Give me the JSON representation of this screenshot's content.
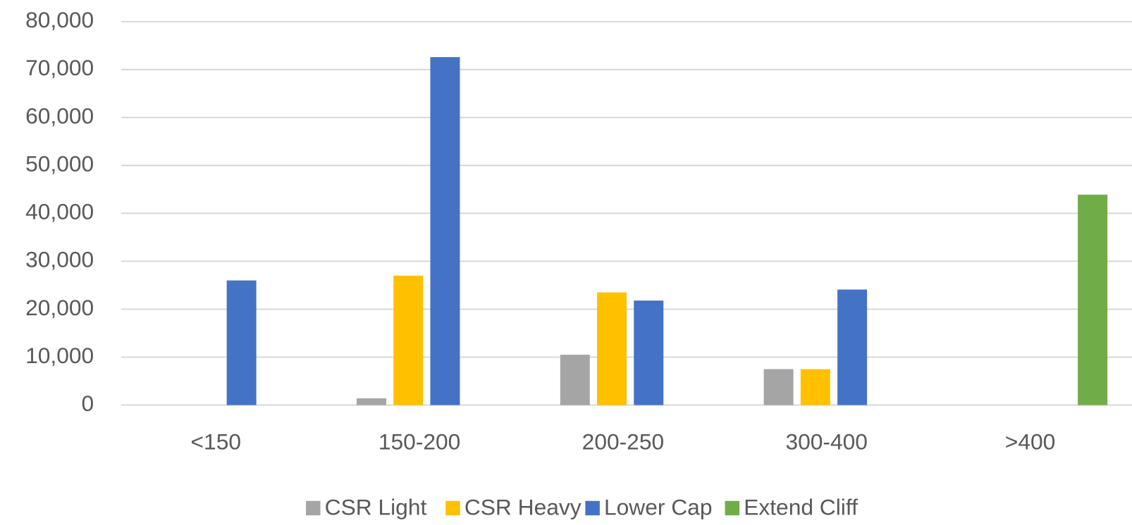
{
  "chart_data": {
    "type": "bar",
    "categories": [
      "<150",
      "150-200",
      "200-250",
      "300-400",
      ">400"
    ],
    "series": [
      {
        "name": "CSR Light",
        "color": "#a5a5a5",
        "values": [
          0,
          1400,
          10500,
          7500,
          0
        ]
      },
      {
        "name": "CSR Heavy",
        "color": "#ffc000",
        "values": [
          0,
          27000,
          23500,
          7500,
          0
        ]
      },
      {
        "name": "Lower Cap",
        "color": "#4472c4",
        "values": [
          26000,
          72600,
          21800,
          24100,
          0
        ]
      },
      {
        "name": "Extend Cliff",
        "color": "#70ad47",
        "values": [
          0,
          0,
          0,
          0,
          43900
        ]
      }
    ],
    "ylim": [
      0,
      80000
    ],
    "yticks": [
      0,
      {
        "value": 10000,
        "label": "10,000"
      },
      {
        "value": 20000,
        "label": "20,000"
      },
      {
        "value": 30000,
        "label": "30,000"
      },
      {
        "value": 40000,
        "label": "40,000"
      },
      {
        "value": 50000,
        "label": "50,000"
      },
      {
        "value": 60000,
        "label": "60,000"
      },
      {
        "value": 70000,
        "label": "70,000"
      },
      {
        "value": 80000,
        "label": "80,000"
      }
    ],
    "grid": true,
    "legend": "bottom"
  }
}
